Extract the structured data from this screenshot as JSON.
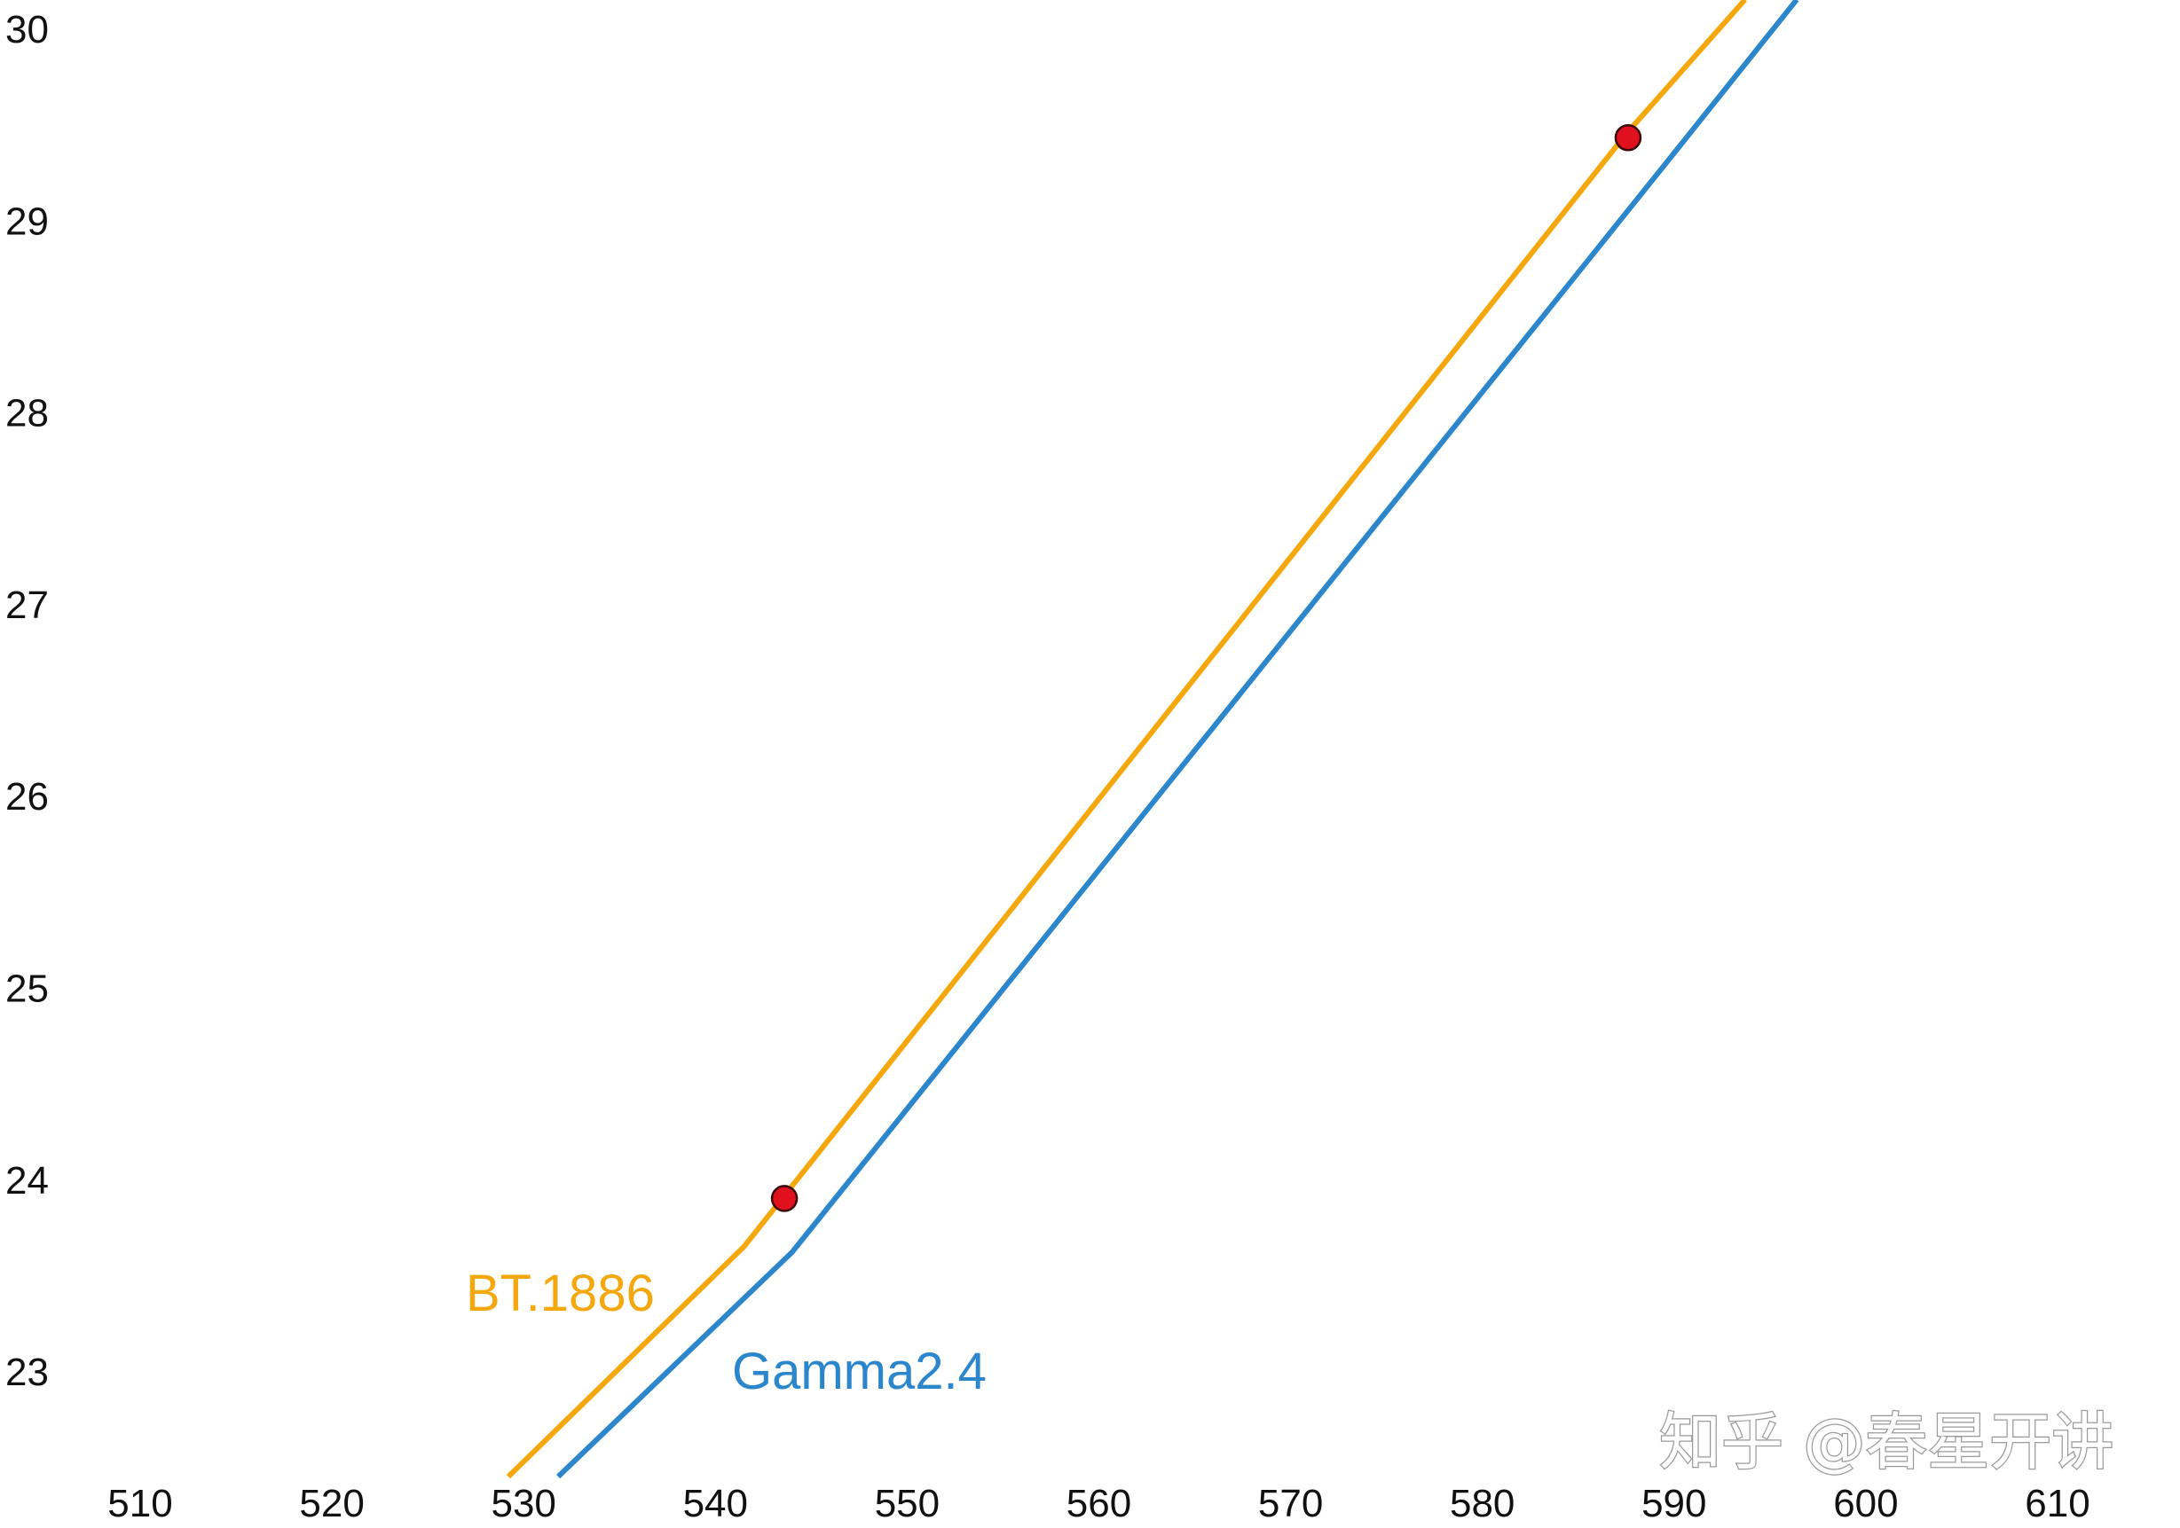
{
  "chart_data": {
    "type": "line",
    "xlim": [
      503,
      618
    ],
    "ylim": [
      22.45,
      30.15
    ],
    "x_ticks": [
      "510",
      "520",
      "530",
      "540",
      "550",
      "560",
      "570",
      "580",
      "590",
      "600",
      "610"
    ],
    "y_ticks": [
      "30",
      "29",
      "28",
      "27",
      "26",
      "25",
      "24",
      "23"
    ],
    "grid": false,
    "series": [
      {
        "name": "BT.1886",
        "color": "#F5A80E",
        "points": [
          [
            529.2,
            22.45
          ],
          [
            541.5,
            23.65
          ],
          [
            587.5,
            29.45
          ],
          [
            593.7,
            30.15
          ]
        ]
      },
      {
        "name": "Gamma2.4",
        "color": "#2B86CC",
        "points": [
          [
            531.8,
            22.45
          ],
          [
            544.0,
            23.62
          ],
          [
            590.0,
            29.35
          ],
          [
            596.4,
            30.15
          ]
        ]
      }
    ],
    "markers": [
      {
        "x": 543.6,
        "y": 23.9,
        "color": "#E0101E"
      },
      {
        "x": 587.6,
        "y": 29.43,
        "color": "#E0101E"
      }
    ]
  },
  "watermark": "知乎 @春星开讲"
}
